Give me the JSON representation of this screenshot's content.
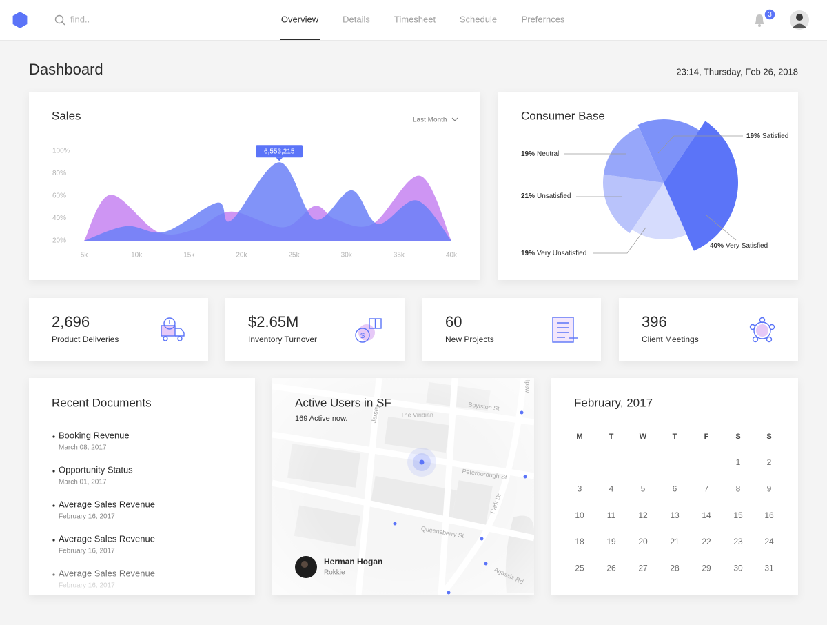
{
  "header": {
    "search_placeholder": "find..",
    "tabs": [
      "Overview",
      "Details",
      "Timesheet",
      "Schedule",
      "Prefernces"
    ],
    "notifications": "3"
  },
  "page": {
    "title": "Dashboard",
    "datetime": "23:14, Thursday, Feb 26, 2018"
  },
  "chart_data": [
    {
      "type": "area",
      "title": "Sales",
      "filter": "Last Month",
      "annotation": "6,553,215",
      "xlim": [
        5000,
        40000
      ],
      "xticks": [
        {
          "value": 5000,
          "label": "5k"
        },
        {
          "value": 10000,
          "label": "10k"
        },
        {
          "value": 15000,
          "label": "15k"
        },
        {
          "value": 20000,
          "label": "20k"
        },
        {
          "value": 25000,
          "label": "25k"
        },
        {
          "value": 30000,
          "label": "30k"
        },
        {
          "value": 35000,
          "label": "35k"
        },
        {
          "value": 40000,
          "label": "40k"
        }
      ],
      "ylim": [
        20,
        100
      ],
      "yticks": [
        {
          "value": 20,
          "label": "20%"
        },
        {
          "value": 40,
          "label": "40%"
        },
        {
          "value": 60,
          "label": "60%"
        },
        {
          "value": 80,
          "label": "80%"
        },
        {
          "value": 100,
          "label": "100%"
        }
      ],
      "series": [
        {
          "color": "#c98af2",
          "x": [
            5000,
            7500,
            12000,
            15500,
            19000,
            24000,
            27000,
            29000,
            32500,
            37000,
            40000
          ],
          "values": [
            20,
            61,
            28,
            30,
            46,
            32,
            51,
            39,
            35,
            78,
            20
          ]
        },
        {
          "color": "#6b80f7",
          "x": [
            5000,
            9000,
            12700,
            17700,
            19000,
            23600,
            27000,
            30500,
            33000,
            36700,
            40000
          ],
          "values": [
            20,
            33,
            28,
            54,
            38,
            90,
            39,
            65,
            35,
            56,
            20
          ]
        }
      ]
    },
    {
      "type": "pie",
      "title": "Consumer Base",
      "categories": [
        "Satisfied",
        "Very Satisfied",
        "Very Unsatisfied",
        "Unsatisfied",
        "Neutral"
      ],
      "values": [
        19,
        40,
        19,
        21,
        19
      ],
      "value_labels": [
        "19%",
        "40%",
        "19%",
        "21%",
        "19%"
      ],
      "colors": [
        "#7d92f9",
        "#5b74f8",
        "#d6dcfd",
        "#b9c3fb",
        "#97a7fa"
      ]
    }
  ],
  "stats": [
    {
      "value": "2,696",
      "label": "Product Deliveries"
    },
    {
      "value": "$2.65M",
      "label": "Inventory Turnover"
    },
    {
      "value": "60",
      "label": "New Projects"
    },
    {
      "value": "396",
      "label": "Client Meetings"
    }
  ],
  "documents": {
    "title": "Recent Documents",
    "items": [
      {
        "name": "Booking Revenue",
        "date": "March 08, 2017"
      },
      {
        "name": "Opportunity Status",
        "date": "March 01, 2017"
      },
      {
        "name": "Average Sales Revenue",
        "date": "February 16, 2017"
      },
      {
        "name": "Average Sales Revenue",
        "date": "February 16, 2017"
      },
      {
        "name": "Average Sales Revenue",
        "date": "February 16, 2017"
      }
    ]
  },
  "map": {
    "title": "Active Users in SF",
    "subtitle": "169 Active now.",
    "streets": [
      "Boylston St",
      "The Viridian",
      "Jersey",
      "Peterborough St",
      "Park Dr",
      "Queensberry St",
      "Agassiz Rd",
      "Ipsw"
    ],
    "user": {
      "name": "Herman Hogan",
      "company": "Rokkie"
    }
  },
  "calendar": {
    "title": "February, 2017",
    "weekdays": [
      "M",
      "T",
      "W",
      "T",
      "F",
      "S",
      "S"
    ],
    "weeks": [
      [
        null,
        null,
        null,
        null,
        null,
        1,
        2
      ],
      [
        3,
        4,
        5,
        6,
        7,
        8,
        9
      ],
      [
        10,
        11,
        12,
        13,
        14,
        15,
        16
      ],
      [
        18,
        19,
        20,
        21,
        22,
        23,
        24
      ],
      [
        25,
        26,
        27,
        28,
        29,
        30,
        31
      ]
    ]
  }
}
